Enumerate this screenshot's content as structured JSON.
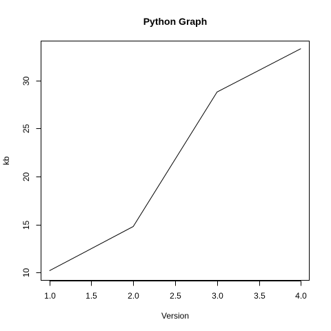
{
  "chart_data": {
    "type": "line",
    "title": "Python Graph",
    "xlabel": "Version",
    "ylabel": "kb",
    "x": [
      1.0,
      2.0,
      3.0,
      4.0
    ],
    "series": [
      {
        "values": [
          10.2,
          14.8,
          28.8,
          33.3
        ]
      }
    ],
    "xlim": [
      0.9,
      4.1
    ],
    "ylim": [
      9.2,
      34.1
    ],
    "x_ticks": [
      1.0,
      1.5,
      2.0,
      2.5,
      3.0,
      3.5,
      4.0
    ],
    "x_tick_labels": [
      "1.0",
      "1.5",
      "2.0",
      "2.5",
      "3.0",
      "3.5",
      "4.0"
    ],
    "y_ticks": [
      10,
      15,
      20,
      25,
      30
    ],
    "y_tick_labels": [
      "10",
      "15",
      "20",
      "25",
      "30"
    ],
    "grid": false,
    "legend": "none",
    "line_color": "#000000"
  }
}
